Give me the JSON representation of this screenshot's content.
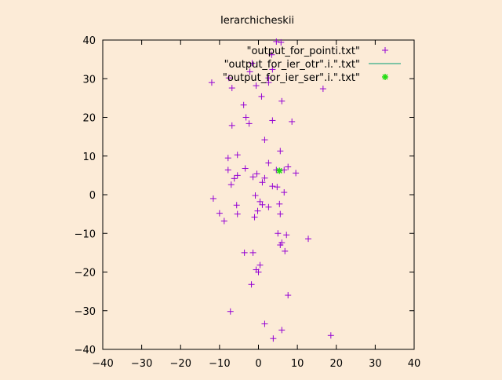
{
  "chart_data": {
    "type": "scatter",
    "title": "Ierarchicheskii",
    "xlabel": "",
    "ylabel": "",
    "xlim": [
      -40,
      40
    ],
    "ylim": [
      -40,
      40
    ],
    "xticks": [
      -40,
      -30,
      -20,
      -10,
      0,
      10,
      20,
      30,
      40
    ],
    "yticks": [
      -40,
      -30,
      -20,
      -10,
      0,
      10,
      20,
      30,
      40
    ],
    "grid": false,
    "legend_position": "top-right",
    "series": [
      {
        "name": "\"output_for_pointi.txt\"",
        "style": "plus",
        "color": "#9400d3",
        "points": [
          [
            4.6,
            39.6
          ],
          [
            5.8,
            39.4
          ],
          [
            3.4,
            36.2
          ],
          [
            -1.6,
            34.0
          ],
          [
            3.6,
            32.4
          ],
          [
            -2.2,
            31.8
          ],
          [
            -7.6,
            30.2
          ],
          [
            2.6,
            30.2
          ],
          [
            2.6,
            29.0
          ],
          [
            -12.0,
            29.0
          ],
          [
            -0.6,
            28.2
          ],
          [
            -6.8,
            27.6
          ],
          [
            16.6,
            27.4
          ],
          [
            0.8,
            25.4
          ],
          [
            6.0,
            24.2
          ],
          [
            -3.8,
            23.2
          ],
          [
            -3.2,
            20.0
          ],
          [
            3.6,
            19.2
          ],
          [
            8.6,
            18.9
          ],
          [
            -2.4,
            18.4
          ],
          [
            -6.8,
            17.9
          ],
          [
            1.6,
            14.2
          ],
          [
            5.6,
            11.3
          ],
          [
            -5.4,
            10.3
          ],
          [
            -7.8,
            9.5
          ],
          [
            2.6,
            8.2
          ],
          [
            7.6,
            7.2
          ],
          [
            -3.4,
            6.8
          ],
          [
            -7.8,
            6.4
          ],
          [
            4.6,
            6.4
          ],
          [
            6.6,
            6.4
          ],
          [
            9.6,
            5.6
          ],
          [
            -0.4,
            5.4
          ],
          [
            -5.4,
            5.0
          ],
          [
            -6.2,
            4.2
          ],
          [
            -1.4,
            4.6
          ],
          [
            1.6,
            4.3
          ],
          [
            1.0,
            3.2
          ],
          [
            -7.0,
            2.6
          ],
          [
            3.6,
            2.2
          ],
          [
            4.8,
            2.0
          ],
          [
            6.6,
            0.6
          ],
          [
            -0.8,
            -0.2
          ],
          [
            -11.6,
            -1.0
          ],
          [
            0.4,
            -1.8
          ],
          [
            1.0,
            -2.6
          ],
          [
            5.4,
            -2.4
          ],
          [
            -5.6,
            -2.7
          ],
          [
            2.6,
            -3.2
          ],
          [
            -0.2,
            -4.2
          ],
          [
            -10.0,
            -4.8
          ],
          [
            -5.4,
            -5.0
          ],
          [
            5.6,
            -5.0
          ],
          [
            -1.0,
            -5.8
          ],
          [
            -8.8,
            -6.8
          ],
          [
            5.0,
            -10.0
          ],
          [
            7.2,
            -10.4
          ],
          [
            12.8,
            -11.4
          ],
          [
            6.0,
            -12.4
          ],
          [
            5.6,
            -13.0
          ],
          [
            6.8,
            -14.6
          ],
          [
            -3.6,
            -15.0
          ],
          [
            -1.4,
            -15.0
          ],
          [
            0.4,
            -18.2
          ],
          [
            -0.6,
            -19.4
          ],
          [
            0.0,
            -20.0
          ],
          [
            -1.8,
            -23.2
          ],
          [
            7.6,
            -26.0
          ],
          [
            -7.2,
            -30.2
          ],
          [
            1.6,
            -33.4
          ],
          [
            6.0,
            -35.0
          ],
          [
            18.6,
            -36.4
          ],
          [
            3.8,
            -37.2
          ]
        ]
      },
      {
        "name": "\"output_for_ier_otr\".i.\".txt\"",
        "style": "line",
        "color": "#009e73",
        "points": []
      },
      {
        "name": "\"output_for_ier_ser\".i.\".txt\"",
        "style": "star",
        "color": "#22dd11",
        "points": [
          [
            5.4,
            6.2
          ]
        ]
      }
    ]
  }
}
